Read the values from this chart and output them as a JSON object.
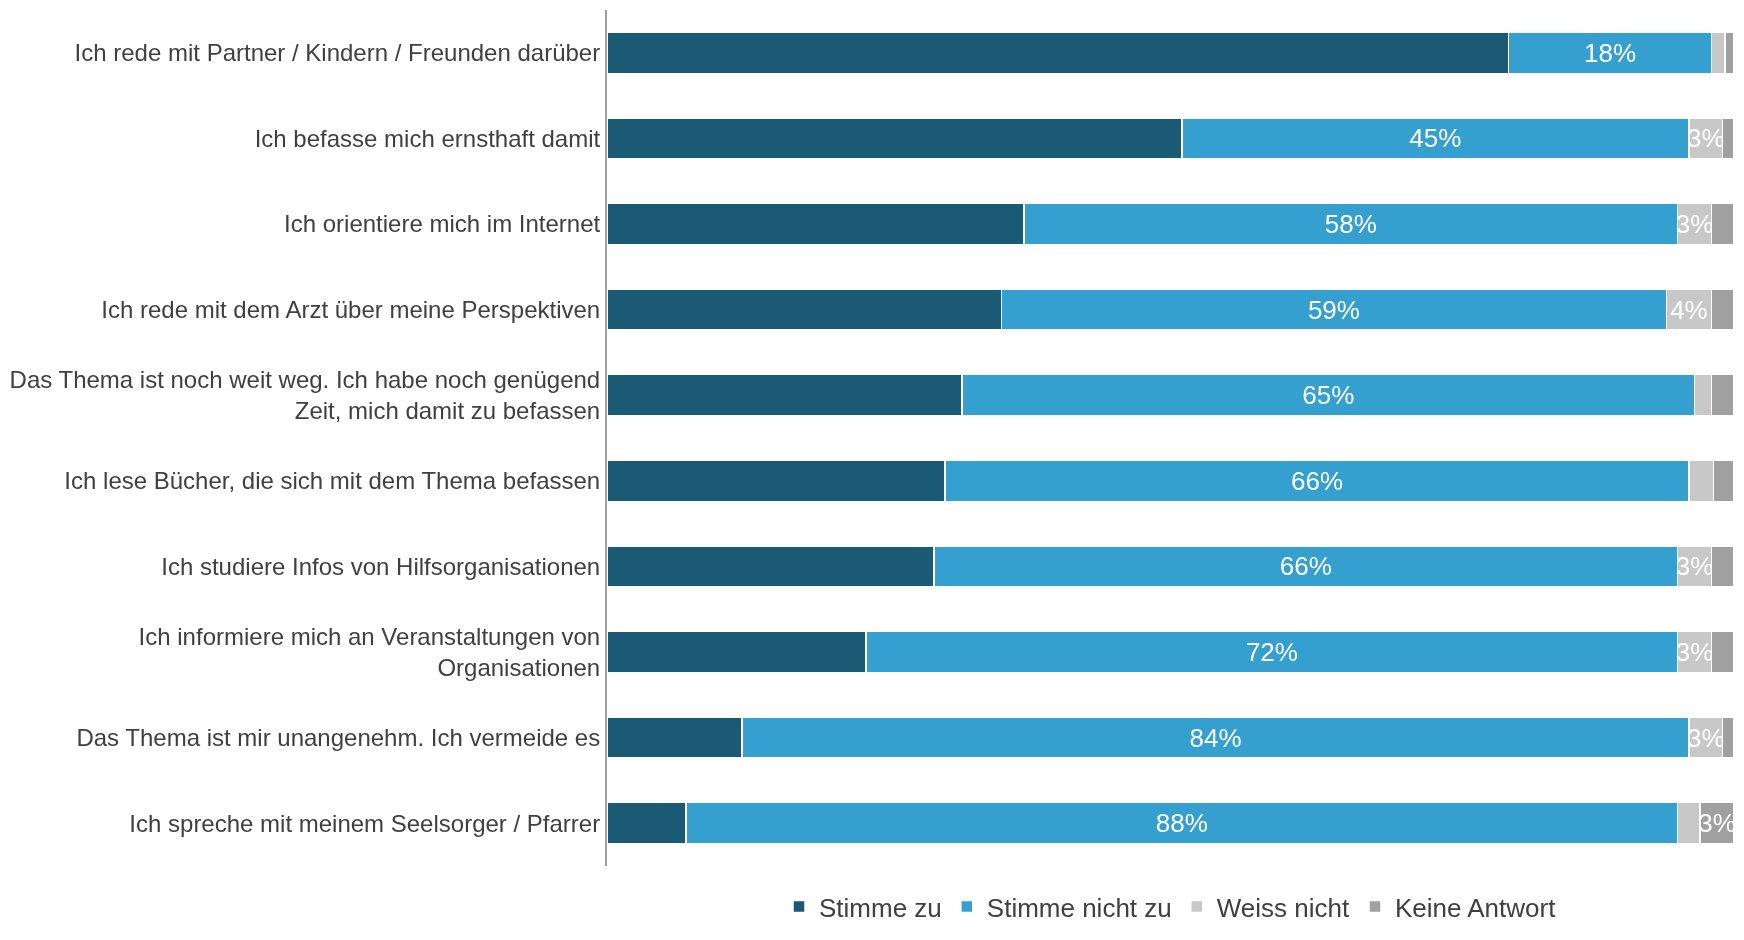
{
  "chart_data": {
    "type": "bar",
    "orientation": "horizontal",
    "stacked": true,
    "legend": "bottom",
    "categories": [
      "Ich rede mit Partner / Kindern / Freunden darüber",
      "Ich befasse mich ernsthaft damit",
      "Ich orientiere mich im Internet",
      "Ich rede mit dem Arzt über meine Perspektiven",
      "Das Thema ist noch weit weg. Ich habe noch genügend Zeit, mich damit zu befassen",
      "Ich lese Bücher, die sich mit dem Thema befassen",
      "Ich studiere Infos von Hilfsorganisationen",
      "Ich informiere mich an Veranstaltungen von Organisationen",
      "Das Thema ist mir unangenehm. Ich vermeide es",
      "Ich spreche mit meinem Seelsorger / Pfarrer"
    ],
    "series": [
      {
        "name": "Stimme zu",
        "color": "#1b5a75",
        "values": [
          80,
          51,
          37,
          35,
          31.5,
          30,
          29,
          23,
          12,
          7
        ]
      },
      {
        "name": "Stimme nicht zu",
        "color": "#35a0d0",
        "values": [
          18,
          45,
          58,
          59,
          65,
          66,
          66,
          72,
          84,
          88
        ],
        "value_labels": [
          "18%",
          "45%",
          "58%",
          "59%",
          "65%",
          "66%",
          "66%",
          "72%",
          "84%",
          "88%"
        ]
      },
      {
        "name": "Weiss nicht",
        "color": "#c8c8c8",
        "values": [
          1.2,
          3,
          3,
          4,
          1.5,
          2.2,
          3,
          3,
          3,
          2
        ],
        "value_labels": [
          null,
          "3%",
          "3%",
          "4%",
          null,
          null,
          "3%",
          "3%",
          "3%",
          null
        ]
      },
      {
        "name": "Keine Antwort",
        "color": "#a0a0a0",
        "values": [
          0.8,
          1,
          2,
          2,
          2,
          1.8,
          2,
          2,
          1,
          3
        ],
        "value_labels": [
          null,
          null,
          null,
          null,
          null,
          null,
          null,
          null,
          null,
          "3%"
        ]
      }
    ]
  }
}
